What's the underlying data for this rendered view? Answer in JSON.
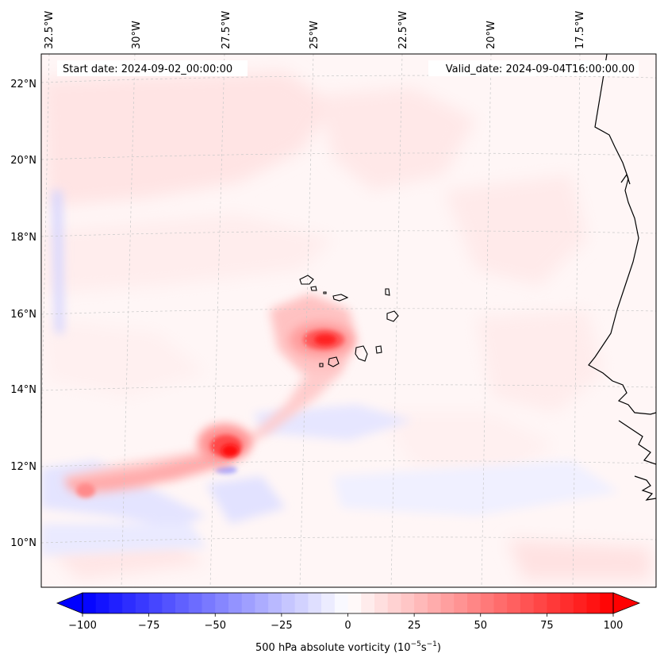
{
  "header": {
    "start_date": "Start date: 2024-09-02_00:00:00",
    "valid_date": "Valid_date: 2024-09-04T16:00:00.00"
  },
  "map": {
    "longitude_labels": [
      "32.5°W",
      "30°W",
      "27.5°W",
      "25°W",
      "22.5°W",
      "20°W",
      "17.5°W"
    ],
    "latitude_labels": [
      "22°N",
      "20°N",
      "18°N",
      "16°N",
      "14°N",
      "12°N",
      "10°N"
    ],
    "lon_extent": [
      -32.5,
      -15.0
    ],
    "lat_extent": [
      9.0,
      22.8
    ]
  },
  "colorbar": {
    "ticks": [
      -100,
      -75,
      -50,
      -25,
      0,
      25,
      50,
      75,
      100
    ],
    "tick_labels": [
      "−100",
      "−75",
      "−50",
      "−25",
      "0",
      "25",
      "50",
      "75",
      "100"
    ],
    "range": [
      -100,
      100
    ],
    "label_main": "500 hPa absolute vorticity (10",
    "label_exp1": "−5",
    "label_mid": "s",
    "label_exp2": "−1",
    "label_end": ")",
    "cmap": "bwr",
    "negative_color": "#0000ff",
    "positive_color": "#ff0000"
  }
}
